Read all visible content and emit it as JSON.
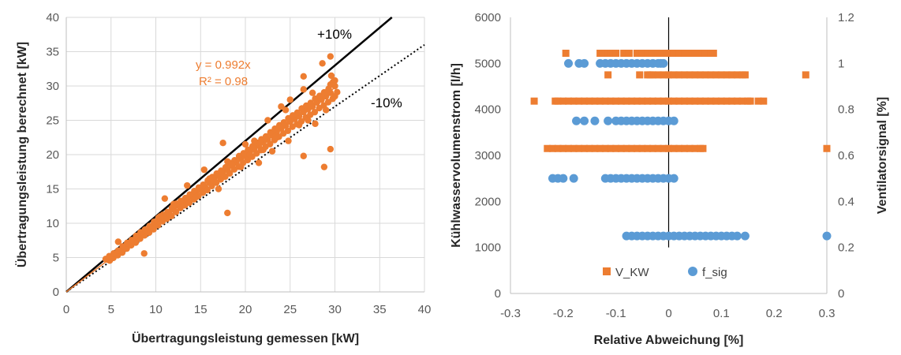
{
  "colors": {
    "orange": "#ED7D31",
    "blue": "#5B9BD5",
    "grid": "#D9D9D9",
    "axis": "#BFBFBF"
  },
  "chart_data": [
    {
      "type": "scatter",
      "title": "",
      "xlabel": "Übertragungsleistung gemessen [kW]",
      "ylabel": "Übertragungsleistung berechnet [kW]",
      "xlim": [
        0,
        40
      ],
      "ylim": [
        0,
        40
      ],
      "xticks": [
        "0",
        "5",
        "10",
        "15",
        "20",
        "25",
        "30",
        "35",
        "40"
      ],
      "yticks": [
        "0",
        "5",
        "10",
        "15",
        "20",
        "25",
        "30",
        "35",
        "40"
      ],
      "grid": true,
      "reference_lines": [
        {
          "label": "+10%",
          "slope": 1.1,
          "style": "solid"
        },
        {
          "label": "-10%",
          "slope": 0.9,
          "style": "dotted"
        }
      ],
      "trendline": {
        "equation": "y = 0.992x",
        "r2": "R² = 0.98",
        "slope": 0.992
      },
      "series": [
        {
          "x": [
            4.6,
            5.0,
            5.5,
            6.0,
            6.5,
            7.0,
            7.5,
            8.0,
            8.5,
            9.0,
            9.5,
            10.0,
            10.5,
            11.0,
            11.5,
            12.0,
            12.5,
            13.0,
            13.5,
            14.0,
            14.5,
            15.0,
            15.5,
            16.0,
            16.5,
            17.0,
            17.5,
            18.0,
            18.5,
            19.0,
            19.5,
            20.0,
            20.5,
            21.0,
            21.5,
            22.0,
            22.5,
            23.0,
            23.5,
            24.0,
            24.5,
            25.0,
            25.5,
            26.0,
            26.5,
            27.0,
            27.5,
            28.0,
            28.5,
            29.0,
            29.5,
            30.0,
            5.8,
            8.7,
            11.0,
            13.5,
            15.4,
            16.0,
            17.5,
            18.0,
            17.0,
            19.5,
            21.0,
            22.0,
            23.5,
            24.0,
            25.0,
            26.0,
            26.5,
            27.5,
            28.6,
            29.5,
            29.6,
            29.8,
            30.0,
            20.0,
            22.5,
            24.5,
            26.5,
            27.0,
            18.0,
            26.5,
            29.5,
            28.8,
            21.5,
            23.0,
            24.8,
            27.8,
            29.0,
            30.0,
            29.5,
            10.5,
            12.0,
            14.5,
            16.5,
            18.5,
            20.5
          ],
          "y": [
            4.7,
            5.1,
            5.5,
            5.9,
            6.5,
            7.0,
            7.4,
            8.0,
            8.5,
            8.9,
            9.4,
            10.0,
            10.6,
            11.0,
            11.4,
            12.0,
            12.6,
            13.0,
            13.4,
            13.9,
            14.4,
            14.9,
            15.3,
            15.9,
            16.4,
            16.9,
            17.3,
            17.8,
            18.4,
            18.8,
            19.4,
            19.8,
            20.3,
            20.8,
            21.3,
            21.8,
            22.2,
            22.8,
            23.3,
            23.8,
            24.2,
            24.8,
            25.2,
            25.6,
            26.2,
            26.6,
            27.0,
            27.6,
            28.0,
            28.5,
            29.0,
            30.0,
            7.3,
            5.6,
            13.6,
            15.5,
            17.8,
            16.5,
            21.7,
            11.5,
            15.0,
            18.2,
            22.0,
            20.7,
            22.5,
            27.0,
            28.0,
            24.3,
            31.4,
            29.0,
            33.3,
            34.3,
            31.5,
            30.5,
            30.8,
            21.5,
            25.0,
            26.5,
            29.5,
            25.0,
            19.0,
            19.8,
            20.8,
            18.2,
            18.8,
            20.5,
            22.0,
            24.5,
            26.5,
            28.5,
            30.2,
            11.0,
            12.8,
            13.8,
            16.2,
            18.6,
            20.0
          ]
        }
      ]
    },
    {
      "type": "scatter",
      "title": "",
      "xlabel": "Relative Abweichung [%]",
      "ylabel": "Kühlwasservolumenstrom  [l/h]",
      "y2label": "Ventilatorsignal  [%]",
      "xlim": [
        -0.3,
        0.3
      ],
      "ylim": [
        0,
        6000
      ],
      "y2lim": [
        0,
        1.2
      ],
      "xticks": [
        "-0.3",
        "-0.2",
        "-0.1",
        "0",
        "0.1",
        "0.2",
        "0.3"
      ],
      "yticks": [
        "0",
        "1000",
        "2000",
        "3000",
        "4000",
        "5000",
        "6000"
      ],
      "y2ticks": [
        "0",
        "0.2",
        "0.4",
        "0.6",
        "0.8",
        "1",
        "1.2"
      ],
      "grid": false,
      "legend_position": "bottom",
      "series": [
        {
          "name": "V_KW",
          "axis": "left",
          "marker": "square",
          "bands": [
            {
              "y": 5220,
              "x": [
                -0.195,
                -0.13,
                -0.125,
                -0.12,
                -0.115,
                -0.11,
                -0.105,
                -0.1,
                -0.085,
                -0.075,
                -0.06,
                -0.05,
                -0.04,
                -0.03,
                -0.02,
                -0.01,
                0,
                0.01,
                0.02,
                0.03,
                0.04,
                0.05,
                0.06,
                0.07,
                0.08,
                0.085
              ]
            },
            {
              "y": 4750,
              "x": [
                -0.115,
                -0.055,
                -0.04,
                -0.035,
                -0.03,
                -0.02,
                -0.01,
                0,
                0.01,
                0.02,
                0.03,
                0.04,
                0.05,
                0.06,
                0.07,
                0.08,
                0.09,
                0.1,
                0.11,
                0.12,
                0.13,
                0.14,
                0.145,
                0.26
              ]
            },
            {
              "y": 4180,
              "x": [
                -0.255,
                -0.215,
                -0.21,
                -0.2,
                -0.19,
                -0.18,
                -0.17,
                -0.16,
                -0.15,
                -0.14,
                -0.13,
                -0.12,
                -0.11,
                -0.1,
                -0.09,
                -0.08,
                -0.07,
                -0.06,
                -0.05,
                -0.04,
                -0.03,
                -0.02,
                -0.01,
                0,
                0.01,
                0.02,
                0.03,
                0.04,
                0.05,
                0.06,
                0.07,
                0.08,
                0.09,
                0.1,
                0.11,
                0.12,
                0.13,
                0.14,
                0.15,
                0.155,
                0.17,
                0.18
              ]
            },
            {
              "y": 3150,
              "x": [
                -0.23,
                -0.22,
                -0.21,
                -0.2,
                -0.19,
                -0.18,
                -0.17,
                -0.16,
                -0.15,
                -0.14,
                -0.13,
                -0.12,
                -0.11,
                -0.1,
                -0.09,
                -0.08,
                -0.07,
                -0.06,
                -0.05,
                -0.04,
                -0.03,
                -0.02,
                -0.01,
                0,
                0.01,
                0.02,
                0.03,
                0.04,
                0.05,
                0.06,
                0.065,
                0.3
              ]
            }
          ]
        },
        {
          "name": "f_sig",
          "axis": "right",
          "marker": "circle",
          "bands": [
            {
              "y": 1.0,
              "x": [
                -0.19,
                -0.17,
                -0.16,
                -0.13,
                -0.12,
                -0.11,
                -0.1,
                -0.09,
                -0.08,
                -0.07,
                -0.06,
                -0.05,
                -0.04,
                -0.03,
                -0.02,
                -0.015,
                -0.01
              ]
            },
            {
              "y": 0.75,
              "x": [
                -0.175,
                -0.16,
                -0.14,
                -0.115,
                -0.1,
                -0.09,
                -0.08,
                -0.07,
                -0.06,
                -0.05,
                -0.04,
                -0.03,
                -0.02,
                -0.01,
                0,
                0.01
              ]
            },
            {
              "y": 0.5,
              "x": [
                -0.22,
                -0.21,
                -0.2,
                -0.18,
                -0.12,
                -0.11,
                -0.1,
                -0.09,
                -0.08,
                -0.07,
                -0.06,
                -0.05,
                -0.04,
                -0.03,
                -0.02,
                -0.01,
                0,
                0.01
              ]
            },
            {
              "y": 0.25,
              "x": [
                -0.08,
                -0.07,
                -0.06,
                -0.05,
                -0.04,
                -0.03,
                -0.02,
                -0.01,
                0,
                0.01,
                0.02,
                0.03,
                0.04,
                0.05,
                0.06,
                0.07,
                0.08,
                0.09,
                0.1,
                0.11,
                0.12,
                0.13,
                0.145,
                0.3
              ]
            }
          ]
        }
      ]
    }
  ]
}
